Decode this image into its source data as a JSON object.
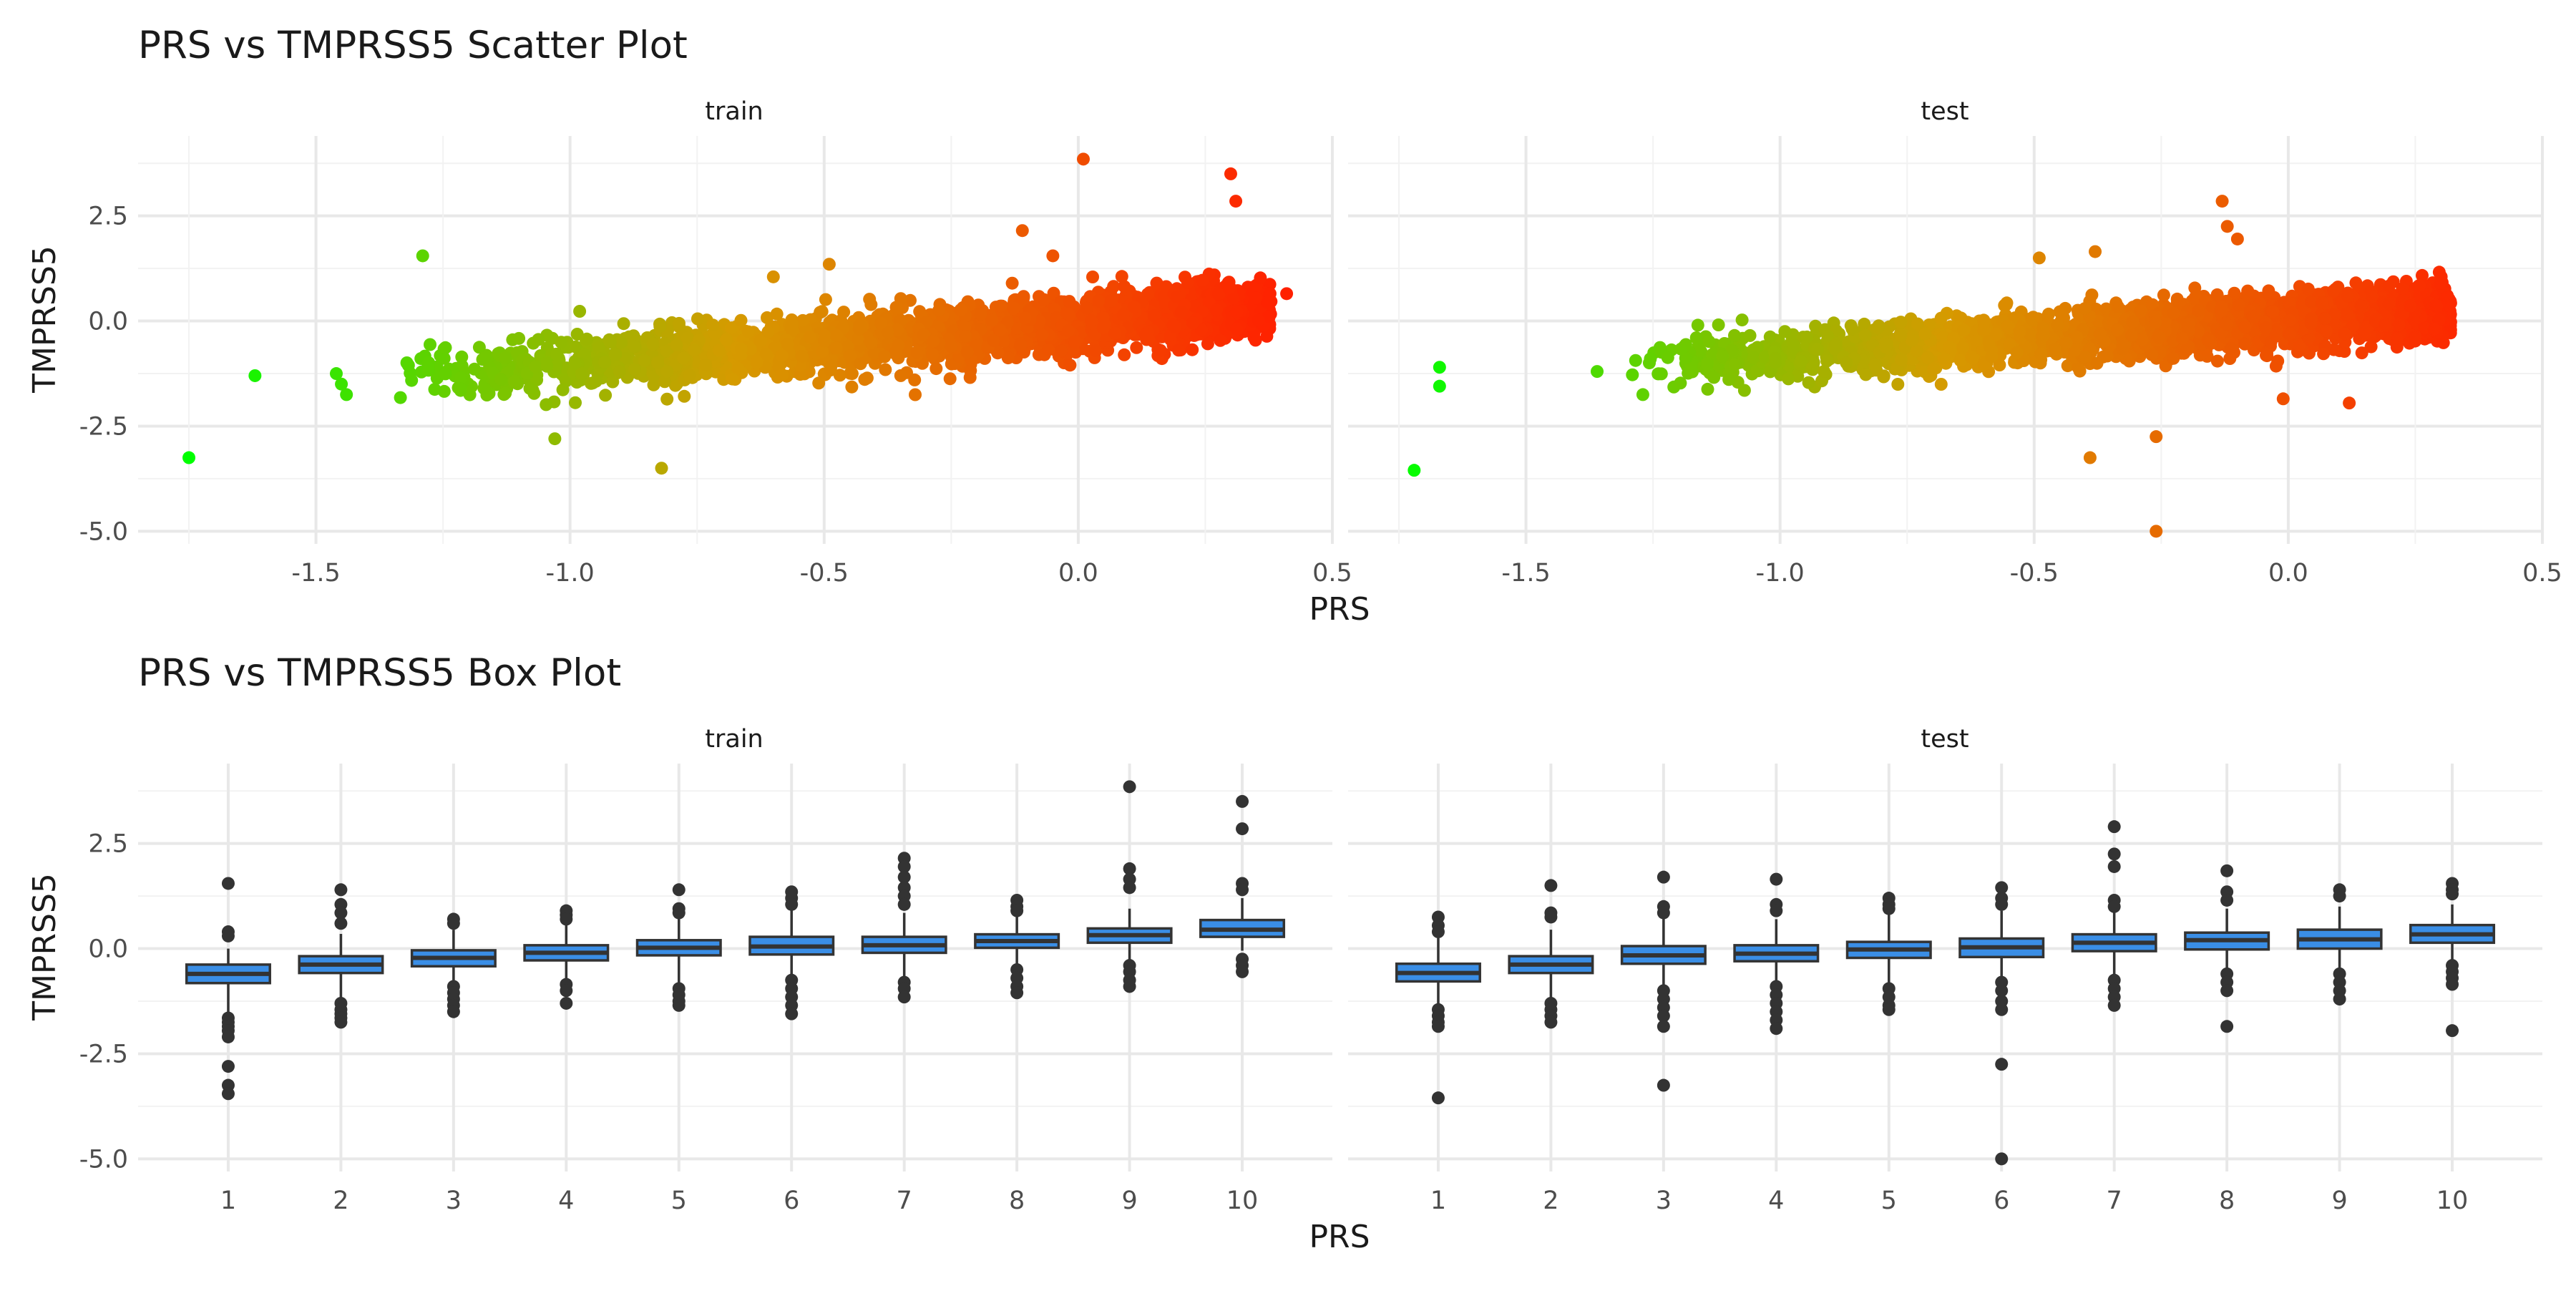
{
  "chart_data": [
    {
      "type": "scatter",
      "title": "PRS vs TMPRSS5 Scatter Plot",
      "xlabel": "PRS",
      "ylabel": "TMPRSS5",
      "x_ticks": [
        "-1.5",
        "-1.0",
        "-0.5",
        "0.0",
        "0.5"
      ],
      "y_ticks": [
        "2.5",
        "0.0",
        "-2.5",
        "-5.0"
      ],
      "grid": true,
      "legend": "none",
      "color_scale": {
        "low": "#00ff00",
        "mid": "#d69a00",
        "high": "#ff2000",
        "mapped_to": "PRS"
      },
      "panels": [
        {
          "label": "train",
          "xlim": [
            -1.85,
            0.5
          ],
          "ylim": [
            -5.3,
            4.4
          ],
          "trend": {
            "x0": -1.35,
            "x1": 0.38,
            "intercept": -0.05,
            "slope": 2.1,
            "spread": 0.33
          },
          "outliers": [
            {
              "x": -1.75,
              "y": -3.25
            },
            {
              "x": -1.62,
              "y": -1.3
            },
            {
              "x": -1.46,
              "y": -1.25
            },
            {
              "x": -1.45,
              "y": -1.5
            },
            {
              "x": -1.44,
              "y": -1.75
            },
            {
              "x": -1.29,
              "y": 1.55
            },
            {
              "x": -1.03,
              "y": -2.8
            },
            {
              "x": -0.82,
              "y": -3.5
            },
            {
              "x": 0.01,
              "y": 3.85
            },
            {
              "x": 0.3,
              "y": 3.5
            },
            {
              "x": 0.31,
              "y": 2.85
            },
            {
              "x": 0.41,
              "y": 0.65
            },
            {
              "x": -0.11,
              "y": 2.15
            },
            {
              "x": -0.05,
              "y": 1.55
            },
            {
              "x": -0.49,
              "y": 1.35
            },
            {
              "x": -0.6,
              "y": 1.05
            }
          ]
        },
        {
          "label": "test",
          "xlim": [
            -1.85,
            0.5
          ],
          "ylim": [
            -5.3,
            4.4
          ],
          "trend": {
            "x0": -1.3,
            "x1": 0.32,
            "intercept": 0.0,
            "slope": 1.8,
            "spread": 0.3
          },
          "outliers": [
            {
              "x": -1.72,
              "y": -3.55
            },
            {
              "x": -1.67,
              "y": -1.1
            },
            {
              "x": -1.67,
              "y": -1.55
            },
            {
              "x": -1.36,
              "y": -1.2
            },
            {
              "x": -1.27,
              "y": -1.75
            },
            {
              "x": -0.26,
              "y": -5.0
            },
            {
              "x": -0.39,
              "y": -3.25
            },
            {
              "x": -0.26,
              "y": -2.75
            },
            {
              "x": -0.13,
              "y": 2.85
            },
            {
              "x": -0.12,
              "y": 2.25
            },
            {
              "x": -0.1,
              "y": 1.95
            },
            {
              "x": -0.38,
              "y": 1.65
            },
            {
              "x": -0.49,
              "y": 1.5
            },
            {
              "x": 0.12,
              "y": -1.95
            },
            {
              "x": -0.01,
              "y": -1.85
            }
          ]
        }
      ]
    },
    {
      "type": "box",
      "title": "PRS vs TMPRSS5 Box Plot",
      "xlabel": "PRS",
      "ylabel": "TMPRSS5",
      "categories": [
        "1",
        "2",
        "3",
        "4",
        "5",
        "6",
        "7",
        "8",
        "9",
        "10"
      ],
      "y_ticks": [
        "2.5",
        "0.0",
        "-2.5",
        "-5.0"
      ],
      "ylim": [
        -5.3,
        4.4
      ],
      "box_color": "#3a8ee6",
      "grid": true,
      "panels": [
        {
          "label": "train",
          "boxes": [
            {
              "q1": -0.82,
              "median": -0.6,
              "q3": -0.38,
              "whisker_low": -1.6,
              "whisker_high": 0.0,
              "outliers": [
                1.55,
                0.4,
                0.3,
                -1.65,
                -1.75,
                -1.85,
                -1.95,
                -2.1,
                -2.8,
                -3.25,
                -3.45
              ]
            },
            {
              "q1": -0.58,
              "median": -0.38,
              "q3": -0.18,
              "whisker_low": -1.25,
              "whisker_high": 0.35,
              "outliers": [
                1.4,
                1.05,
                0.85,
                0.6,
                -1.3,
                -1.45,
                -1.55,
                -1.65,
                -1.75
              ]
            },
            {
              "q1": -0.42,
              "median": -0.22,
              "q3": -0.04,
              "whisker_low": -0.85,
              "whisker_high": 0.45,
              "outliers": [
                0.7,
                0.6,
                -0.9,
                -1.05,
                -1.2,
                -1.35,
                -1.5
              ]
            },
            {
              "q1": -0.28,
              "median": -0.1,
              "q3": 0.08,
              "whisker_low": -0.8,
              "whisker_high": 0.6,
              "outliers": [
                0.9,
                0.8,
                0.7,
                -0.85,
                -1.0,
                -1.3
              ]
            },
            {
              "q1": -0.16,
              "median": 0.02,
              "q3": 0.2,
              "whisker_low": -0.85,
              "whisker_high": 0.75,
              "outliers": [
                1.4,
                0.95,
                0.85,
                -0.95,
                -1.1,
                -1.25,
                -1.35
              ]
            },
            {
              "q1": -0.14,
              "median": 0.05,
              "q3": 0.28,
              "whisker_low": -0.7,
              "whisker_high": 0.95,
              "outliers": [
                1.35,
                1.2,
                1.05,
                -0.75,
                -0.95,
                -1.15,
                -1.35,
                -1.55
              ]
            },
            {
              "q1": -0.1,
              "median": 0.08,
              "q3": 0.28,
              "whisker_low": -0.7,
              "whisker_high": 0.85,
              "outliers": [
                2.15,
                1.95,
                1.7,
                1.45,
                1.25,
                1.05,
                -0.8,
                -0.95,
                -1.15
              ]
            },
            {
              "q1": 0.02,
              "median": 0.18,
              "q3": 0.34,
              "whisker_low": -0.45,
              "whisker_high": 0.8,
              "outliers": [
                1.15,
                1.0,
                0.9,
                -0.5,
                -0.7,
                -0.9,
                -1.05
              ]
            },
            {
              "q1": 0.14,
              "median": 0.32,
              "q3": 0.48,
              "whisker_low": -0.35,
              "whisker_high": 0.95,
              "outliers": [
                3.85,
                1.9,
                1.65,
                1.45,
                -0.4,
                -0.55,
                -0.75,
                -0.9
              ]
            },
            {
              "q1": 0.28,
              "median": 0.45,
              "q3": 0.68,
              "whisker_low": -0.05,
              "whisker_high": 1.2,
              "outliers": [
                3.5,
                2.85,
                1.55,
                1.4,
                -0.25,
                -0.4,
                -0.55
              ]
            }
          ]
        },
        {
          "label": "test",
          "boxes": [
            {
              "q1": -0.78,
              "median": -0.58,
              "q3": -0.36,
              "whisker_low": -1.4,
              "whisker_high": 0.25,
              "outliers": [
                0.75,
                0.55,
                0.4,
                -1.45,
                -1.6,
                -1.75,
                -1.85,
                -3.55
              ]
            },
            {
              "q1": -0.58,
              "median": -0.38,
              "q3": -0.18,
              "whisker_low": -1.2,
              "whisker_high": 0.45,
              "outliers": [
                1.5,
                0.85,
                0.75,
                -1.3,
                -1.45,
                -1.6,
                -1.75
              ]
            },
            {
              "q1": -0.36,
              "median": -0.16,
              "q3": 0.06,
              "whisker_low": -0.95,
              "whisker_high": 0.75,
              "outliers": [
                1.7,
                1.0,
                0.85,
                -1.0,
                -1.2,
                -1.4,
                -1.6,
                -1.85,
                -3.25
              ]
            },
            {
              "q1": -0.3,
              "median": -0.12,
              "q3": 0.08,
              "whisker_low": -0.85,
              "whisker_high": 0.7,
              "outliers": [
                1.65,
                1.05,
                0.9,
                -0.9,
                -1.1,
                -1.3,
                -1.5,
                -1.7,
                -1.9
              ]
            },
            {
              "q1": -0.22,
              "median": -0.02,
              "q3": 0.16,
              "whisker_low": -0.85,
              "whisker_high": 0.85,
              "outliers": [
                1.2,
                1.05,
                0.95,
                -0.95,
                -1.15,
                -1.35,
                -1.45
              ]
            },
            {
              "q1": -0.2,
              "median": 0.03,
              "q3": 0.24,
              "whisker_low": -0.75,
              "whisker_high": 0.9,
              "outliers": [
                1.45,
                1.2,
                1.05,
                -0.8,
                -1.0,
                -1.25,
                -1.45,
                -2.75,
                -5.0
              ]
            },
            {
              "q1": -0.06,
              "median": 0.14,
              "q3": 0.34,
              "whisker_low": -0.65,
              "whisker_high": 0.95,
              "outliers": [
                2.9,
                2.25,
                1.95,
                1.15,
                1.0,
                -0.75,
                -0.95,
                -1.15,
                -1.35
              ]
            },
            {
              "q1": -0.02,
              "median": 0.2,
              "q3": 0.38,
              "whisker_low": -0.55,
              "whisker_high": 0.95,
              "outliers": [
                1.85,
                1.35,
                1.15,
                -0.6,
                -0.8,
                -1.0,
                -1.85
              ]
            },
            {
              "q1": 0.0,
              "median": 0.22,
              "q3": 0.45,
              "whisker_low": -0.55,
              "whisker_high": 1.0,
              "outliers": [
                1.4,
                1.25,
                -0.6,
                -0.8,
                -1.0,
                -1.2
              ]
            },
            {
              "q1": 0.14,
              "median": 0.34,
              "q3": 0.56,
              "whisker_low": -0.35,
              "whisker_high": 1.05,
              "outliers": [
                1.55,
                1.4,
                1.3,
                -0.4,
                -0.55,
                -0.7,
                -0.85,
                -1.95
              ]
            }
          ]
        }
      ]
    }
  ]
}
